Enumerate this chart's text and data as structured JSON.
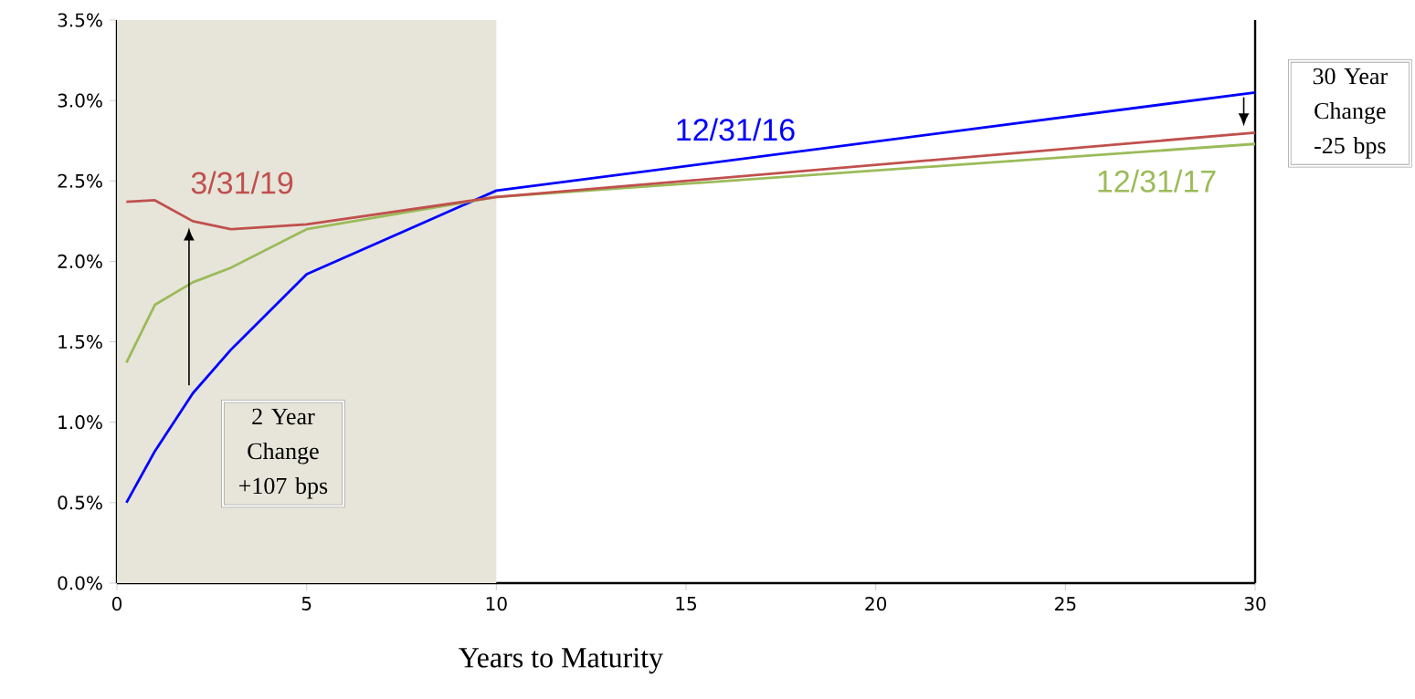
{
  "chart_data": {
    "type": "line",
    "xlabel": "Years to Maturity",
    "xlim": [
      0,
      30
    ],
    "xticks": [
      0,
      5,
      10,
      15,
      20,
      25,
      30
    ],
    "ylim": [
      0,
      3.5
    ],
    "yticks": [
      {
        "value": 0,
        "label": "0.0%"
      },
      {
        "value": 0.5,
        "label": "0.5%"
      },
      {
        "value": 1,
        "label": "1.0%"
      },
      {
        "value": 1.5,
        "label": "1.5%"
      },
      {
        "value": 2,
        "label": "2.0%"
      },
      {
        "value": 2.5,
        "label": "2.5%"
      },
      {
        "value": 3,
        "label": "3.0%"
      },
      {
        "value": 3.5,
        "label": "3.5%"
      }
    ],
    "grid": false,
    "legend": false,
    "marker": "none",
    "line_style": "solid",
    "bands": [
      {
        "axis": "x",
        "from": 0,
        "to": 10,
        "color": "#e7e5da"
      }
    ],
    "annotations": [
      "2 Year Change +107 bps",
      "30 Year Change -25 bps"
    ],
    "series": [
      {
        "name": "12/31/16",
        "color": "#0000ff",
        "x": [
          0.25,
          1,
          2,
          3,
          5,
          10,
          30
        ],
        "values": [
          0.5,
          0.82,
          1.18,
          1.45,
          1.92,
          2.44,
          3.05
        ]
      },
      {
        "name": "12/31/17",
        "color": "#9bbb59",
        "x": [
          0.25,
          1,
          2,
          3,
          5,
          10,
          30
        ],
        "values": [
          1.37,
          1.73,
          1.87,
          1.96,
          2.2,
          2.4,
          2.73
        ]
      },
      {
        "name": "3/31/19",
        "color": "#c0504d",
        "x": [
          0.25,
          1,
          2,
          3,
          5,
          10,
          30
        ],
        "values": [
          2.37,
          2.38,
          2.25,
          2.2,
          2.23,
          2.4,
          2.8
        ]
      }
    ]
  }
}
